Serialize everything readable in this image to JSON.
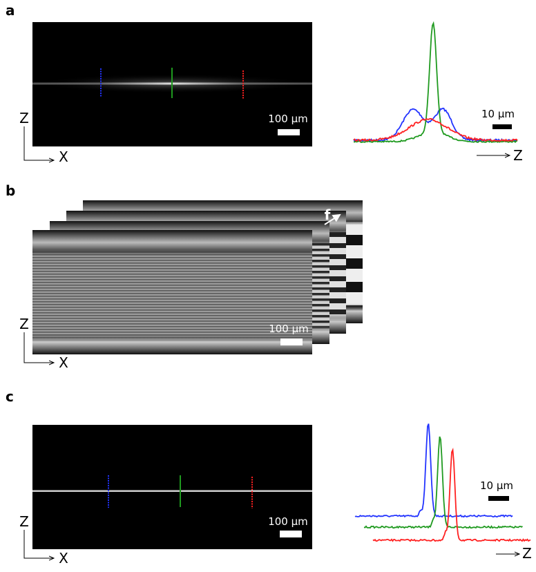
{
  "panels": [
    {
      "label": "a",
      "image": {
        "scale_bar": "100 µm",
        "axis_v": "Z",
        "axis_h": "X"
      },
      "profile": {
        "scale_bar": "10 µm",
        "axis": "Z"
      }
    },
    {
      "label": "b",
      "stack_label": "f",
      "image": {
        "scale_bar": "100 µm",
        "axis_v": "Z",
        "axis_h": "X"
      }
    },
    {
      "label": "c",
      "image": {
        "scale_bar": "100 µm",
        "axis_v": "Z",
        "axis_h": "X"
      },
      "profile": {
        "scale_bar": "10 µm",
        "axis": "Z"
      }
    }
  ]
}
